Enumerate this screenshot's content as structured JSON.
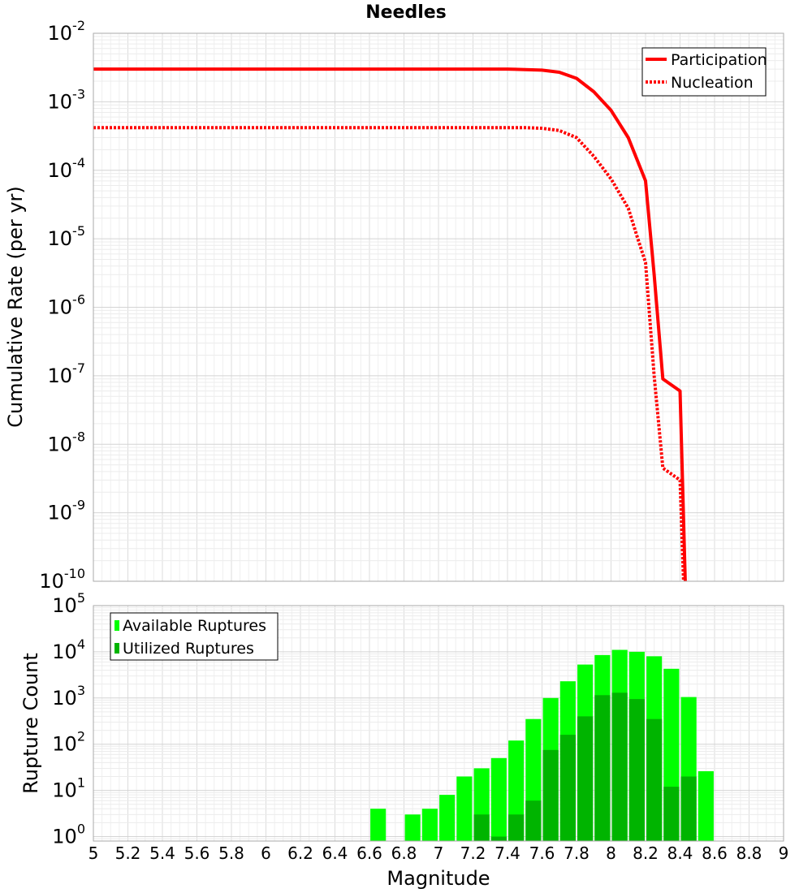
{
  "chart_data": [
    {
      "type": "line",
      "title": "Needles",
      "xlabel": "",
      "ylabel": "Cumulative Rate (per yr)",
      "xlim": [
        5,
        9
      ],
      "ylim": [
        1e-10,
        0.01
      ],
      "yscale": "log",
      "grid": true,
      "legend_position": "top-right",
      "y_ticks": [
        {
          "base": "10",
          "exp": "-2"
        },
        {
          "base": "10",
          "exp": "-3"
        },
        {
          "base": "10",
          "exp": "-4"
        },
        {
          "base": "10",
          "exp": "-5"
        },
        {
          "base": "10",
          "exp": "-6"
        },
        {
          "base": "10",
          "exp": "-7"
        },
        {
          "base": "10",
          "exp": "-8"
        },
        {
          "base": "10",
          "exp": "-9"
        },
        {
          "base": "10",
          "exp": "-10"
        }
      ],
      "series": [
        {
          "name": "Participation",
          "style": "solid",
          "color": "#ff0000",
          "x": [
            5.0,
            7.4,
            7.6,
            7.7,
            7.8,
            7.9,
            8.0,
            8.1,
            8.2,
            8.25,
            8.3,
            8.4,
            8.43
          ],
          "y": [
            0.003,
            0.003,
            0.0029,
            0.0027,
            0.0022,
            0.0014,
            0.00075,
            0.0003,
            7e-05,
            3e-06,
            9e-08,
            6e-08,
            1e-10
          ]
        },
        {
          "name": "Nucleation",
          "style": "dotted",
          "color": "#ff0000",
          "x": [
            5.0,
            7.5,
            7.6,
            7.7,
            7.8,
            7.9,
            8.0,
            8.1,
            8.15,
            8.2,
            8.25,
            8.3,
            8.4,
            8.42
          ],
          "y": [
            0.00042,
            0.00042,
            0.00041,
            0.00038,
            0.0003,
            0.00016,
            7.5e-05,
            2.8e-05,
            1.1e-05,
            4.5e-06,
            1e-07,
            4.5e-09,
            3e-09,
            1e-10
          ]
        }
      ]
    },
    {
      "type": "bar",
      "title": "",
      "xlabel": "Magnitude",
      "ylabel": "Rupture Count",
      "xlim": [
        5,
        9
      ],
      "ylim": [
        0.8,
        100000
      ],
      "yscale": "log",
      "grid": true,
      "legend_position": "top-left",
      "x_ticks": [
        "5",
        "5.2",
        "5.4",
        "5.6",
        "5.8",
        "6",
        "6.2",
        "6.4",
        "6.6",
        "6.8",
        "7",
        "7.2",
        "7.4",
        "7.6",
        "7.8",
        "8",
        "8.2",
        "8.4",
        "8.6",
        "8.8",
        "9"
      ],
      "y_ticks": [
        {
          "base": "10",
          "exp": "5"
        },
        {
          "base": "10",
          "exp": "4"
        },
        {
          "base": "10",
          "exp": "3"
        },
        {
          "base": "10",
          "exp": "2"
        },
        {
          "base": "10",
          "exp": "1"
        },
        {
          "base": "10",
          "exp": "0"
        }
      ],
      "bar_width": 0.09,
      "series": [
        {
          "name": "Available Ruptures",
          "color": "#00ff00",
          "x": [
            6.65,
            6.85,
            6.95,
            7.05,
            7.15,
            7.25,
            7.35,
            7.45,
            7.55,
            7.65,
            7.75,
            7.85,
            7.95,
            8.05,
            8.15,
            8.25,
            8.35,
            8.45,
            8.55
          ],
          "values": [
            4,
            3,
            4,
            8,
            20,
            30,
            50,
            120,
            350,
            1000,
            2300,
            5300,
            8500,
            11000,
            10000,
            8000,
            4300,
            1050,
            26
          ]
        },
        {
          "name": "Utilized Ruptures",
          "color": "#00b400",
          "x": [
            7.25,
            7.35,
            7.45,
            7.55,
            7.65,
            7.75,
            7.85,
            7.95,
            8.05,
            8.15,
            8.25,
            8.35,
            8.45
          ],
          "values": [
            3,
            1,
            3,
            6,
            75,
            160,
            400,
            1150,
            1300,
            950,
            350,
            12,
            20
          ]
        }
      ]
    }
  ]
}
